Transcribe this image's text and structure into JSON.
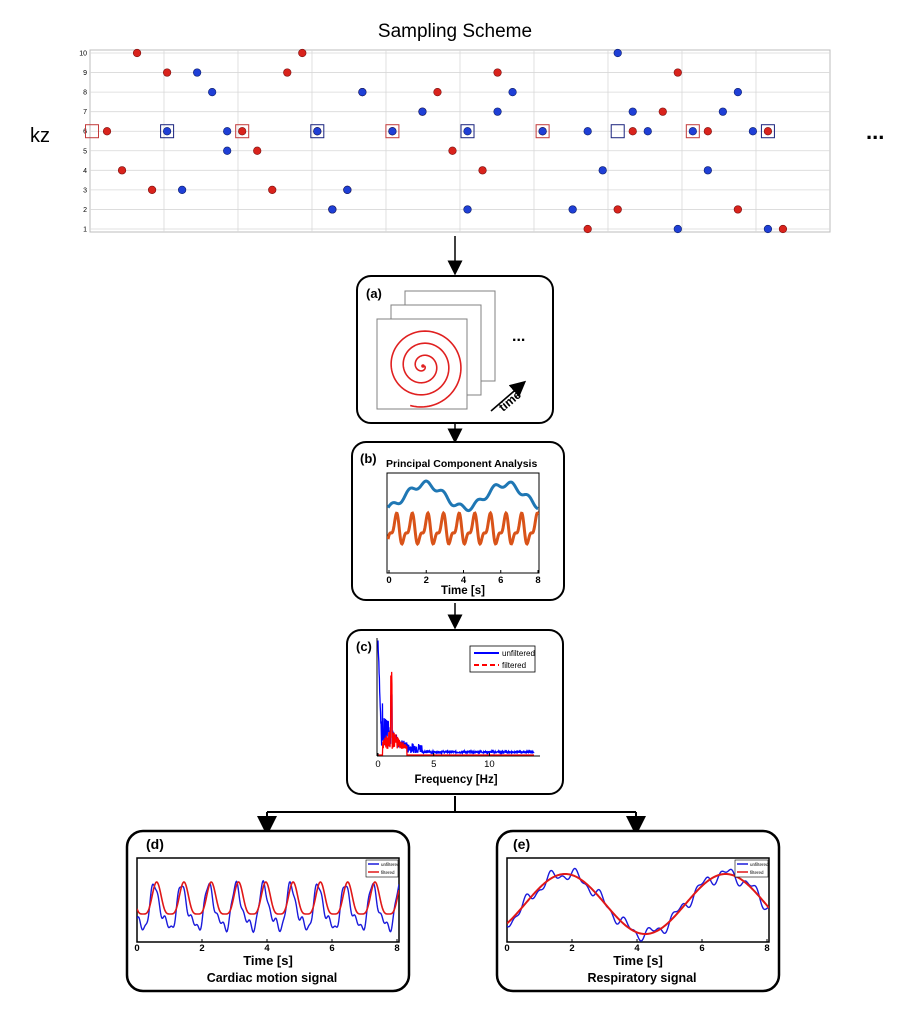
{
  "title": "Sampling Scheme",
  "kz_label": "kz",
  "ellipsis": "...",
  "sampling": {
    "y_ticks": [
      "1",
      "2",
      "3",
      "4",
      "5",
      "6",
      "7",
      "8",
      "9",
      "10"
    ],
    "ylim": [
      1,
      10
    ],
    "xlim": [
      0,
      49
    ],
    "red_points": [
      [
        1,
        6
      ],
      [
        2,
        4
      ],
      [
        3,
        10
      ],
      [
        4,
        3
      ],
      [
        5,
        9
      ],
      [
        10,
        6
      ],
      [
        11,
        5
      ],
      [
        12,
        3
      ],
      [
        13,
        9
      ],
      [
        14,
        10
      ],
      [
        15,
        6
      ],
      [
        16,
        2
      ],
      [
        17,
        3
      ],
      [
        18,
        8
      ],
      [
        20,
        6
      ],
      [
        22,
        7
      ],
      [
        23,
        8
      ],
      [
        24,
        5
      ],
      [
        26,
        4
      ],
      [
        27,
        9
      ],
      [
        30,
        6
      ],
      [
        33,
        1
      ],
      [
        35,
        2
      ],
      [
        36,
        6
      ],
      [
        38,
        7
      ],
      [
        39,
        9
      ],
      [
        41,
        6
      ],
      [
        43,
        2
      ],
      [
        45,
        6
      ],
      [
        46,
        1
      ]
    ],
    "blue_points": [
      [
        5,
        6
      ],
      [
        6,
        3
      ],
      [
        7,
        9
      ],
      [
        8,
        8
      ],
      [
        9,
        5
      ],
      [
        9,
        6
      ],
      [
        15,
        6
      ],
      [
        16,
        2
      ],
      [
        17,
        3
      ],
      [
        18,
        8
      ],
      [
        20,
        6
      ],
      [
        22,
        7
      ],
      [
        25,
        6
      ],
      [
        25,
        2
      ],
      [
        27,
        7
      ],
      [
        28,
        8
      ],
      [
        30,
        6
      ],
      [
        32,
        2
      ],
      [
        33,
        6
      ],
      [
        34,
        4
      ],
      [
        35,
        10
      ],
      [
        36,
        7
      ],
      [
        37,
        6
      ],
      [
        39,
        1
      ],
      [
        40,
        6
      ],
      [
        41,
        4
      ],
      [
        42,
        7
      ],
      [
        43,
        8
      ],
      [
        44,
        6
      ],
      [
        45,
        1
      ]
    ],
    "red_boxes": [
      [
        0,
        6
      ],
      [
        10,
        6
      ],
      [
        20,
        6
      ],
      [
        30,
        6
      ],
      [
        40,
        6
      ]
    ],
    "blue_boxes": [
      [
        5,
        6
      ],
      [
        15,
        6
      ],
      [
        25,
        6
      ],
      [
        35,
        6
      ],
      [
        45,
        6
      ]
    ],
    "colors": {
      "red": "#d9231c",
      "blue": "#1f3fd6",
      "grid": "#d8d8d8"
    }
  },
  "panels": {
    "a": {
      "label": "(a)",
      "time_label": "time",
      "dots": "..."
    },
    "b": {
      "label": "(b)",
      "title": "Principal Component Analysis",
      "xlabel": "Time [s]",
      "x_ticks": [
        "0",
        "2",
        "4",
        "6",
        "8"
      ],
      "colors": {
        "pc1": "#1f77b4",
        "pc2": "#d95319"
      }
    },
    "c": {
      "label": "(c)",
      "xlabel": "Frequency [Hz]",
      "x_ticks": [
        "0",
        "5",
        "10"
      ],
      "legend": [
        "unfiltered",
        "filtered"
      ],
      "colors": {
        "unfiltered": "#0000ff",
        "filtered": "#ff0000"
      }
    },
    "d": {
      "label": "(d)",
      "xlabel": "Time [s]",
      "x_ticks": [
        "0",
        "2",
        "4",
        "6",
        "8"
      ],
      "legend": [
        "unfiltered",
        "filtered"
      ],
      "caption": "Cardiac motion signal"
    },
    "e": {
      "label": "(e)",
      "xlabel": "Time [s]",
      "x_ticks": [
        "0",
        "2",
        "4",
        "6",
        "8"
      ],
      "legend": [
        "unfiltered",
        "filtered"
      ],
      "caption": "Respiratory signal"
    }
  }
}
